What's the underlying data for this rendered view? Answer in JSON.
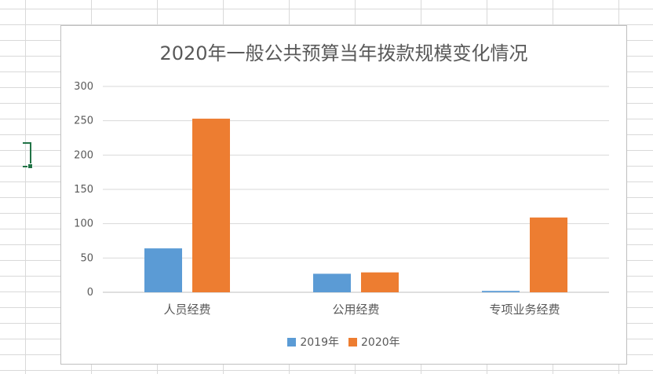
{
  "chart_data": {
    "type": "bar",
    "title": "2020年一般公共预算当年拨款规模变化情况",
    "categories": [
      "人员经费",
      "公用经费",
      "专项业务经费"
    ],
    "series": [
      {
        "name": "2019年",
        "values": [
          64,
          27,
          2
        ],
        "color": "#5b9bd5"
      },
      {
        "name": "2020年",
        "values": [
          253,
          29,
          109
        ],
        "color": "#ed7d31"
      }
    ],
    "ylim": [
      0,
      300
    ],
    "yticks": [
      0,
      50,
      100,
      150,
      200,
      250,
      300
    ],
    "grid": true,
    "legend_position": "bottom"
  }
}
